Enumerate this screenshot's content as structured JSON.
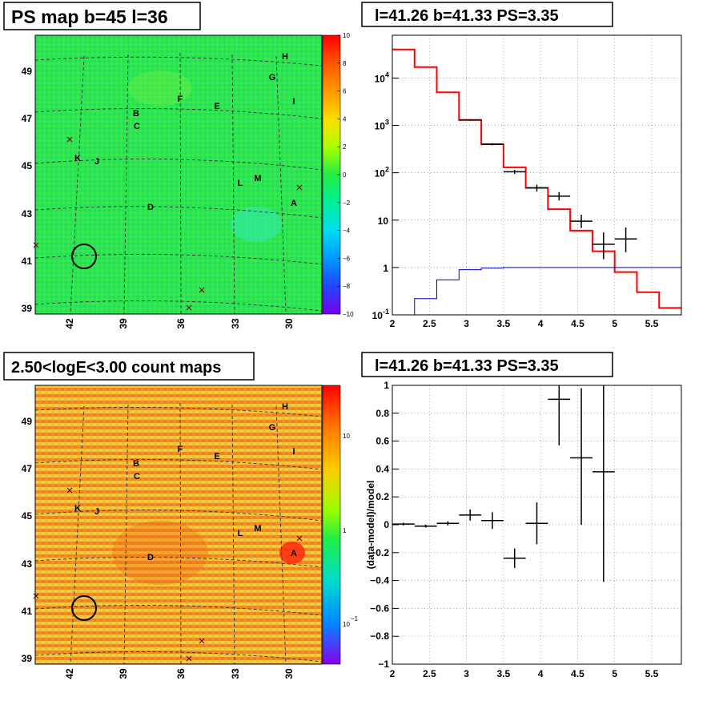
{
  "panels": {
    "ps_map_title": "PS map b=45 l=36",
    "spectrum_title": "l=41.26 b=41.33 PS=3.35",
    "count_map_title": "2.50<logE<3.00 count maps",
    "residual_title": "l=41.26 b=41.33 PS=3.35"
  },
  "sky_maps": {
    "lon_ticks": [
      "42",
      "39",
      "36",
      "33",
      "30"
    ],
    "lat_ticks": [
      "49",
      "47",
      "45",
      "43",
      "41",
      "39"
    ],
    "source_labels": [
      "H",
      "G",
      "I",
      "F",
      "E",
      "B",
      "C",
      "K",
      "J",
      "L",
      "M",
      "A",
      "D"
    ],
    "ps_colorbar_ticks": [
      "10",
      "8",
      "6",
      "4",
      "2",
      "0",
      "−2",
      "−4",
      "−6",
      "−8",
      "−10"
    ],
    "count_colorbar_ticks": [
      "10",
      "1",
      "10",
      "−1"
    ],
    "colors": {
      "ps_background": "#22ee55",
      "count_background": "#f0a020",
      "circle": "#000000"
    }
  },
  "chart_data": [
    {
      "type": "step",
      "title": "l=41.26 b=41.33 PS=3.35",
      "xlabel": "",
      "ylabel": "",
      "xlim": [
        2,
        5.9
      ],
      "ylim": [
        0.1,
        80000
      ],
      "yscale": "log",
      "grid": true,
      "x_ticks": [
        "2",
        "2.5",
        "3",
        "3.5",
        "4",
        "4.5",
        "5",
        "5.5"
      ],
      "y_ticks": [
        "10^-1",
        "1",
        "10",
        "10^2",
        "10^3",
        "10^4"
      ],
      "series": [
        {
          "color": "#ff0000",
          "style": "step",
          "edges": [
            2.0,
            2.3,
            2.6,
            2.9,
            3.2,
            3.5,
            3.8,
            4.1,
            4.4,
            4.7,
            5.0,
            5.3,
            5.6,
            5.9
          ],
          "values": [
            40000,
            17000,
            5000,
            1300,
            400,
            130,
            48,
            17,
            6,
            2.2,
            0.8,
            0.3,
            0.14
          ]
        },
        {
          "color": "#0000cc",
          "style": "step",
          "edges": [
            2.0,
            2.3,
            2.6,
            2.9,
            3.2,
            3.5,
            3.8,
            4.1,
            4.4,
            4.7,
            5.0,
            5.3,
            5.6,
            5.9
          ],
          "values": [
            0.1,
            0.22,
            0.55,
            0.9,
            0.97,
            1.0,
            1.0,
            1.0,
            1.0,
            1.0,
            1.0,
            1.0,
            1.0
          ]
        },
        {
          "color": "#000000",
          "style": "errorbar",
          "points": [
            {
              "x": 3.05,
              "y": 1300,
              "xerr": 0.15,
              "ylo": 1250,
              "yhi": 1350
            },
            {
              "x": 3.35,
              "y": 400,
              "xerr": 0.15,
              "ylo": 380,
              "yhi": 420
            },
            {
              "x": 3.65,
              "y": 105,
              "xerr": 0.15,
              "ylo": 95,
              "yhi": 115
            },
            {
              "x": 3.95,
              "y": 48,
              "xerr": 0.15,
              "ylo": 40,
              "yhi": 56
            },
            {
              "x": 4.25,
              "y": 32,
              "xerr": 0.15,
              "ylo": 26,
              "yhi": 39
            },
            {
              "x": 4.55,
              "y": 9.5,
              "xerr": 0.15,
              "ylo": 6.8,
              "yhi": 13
            },
            {
              "x": 4.85,
              "y": 3.1,
              "xerr": 0.15,
              "ylo": 1.5,
              "yhi": 5.5
            },
            {
              "x": 5.15,
              "y": 4,
              "xerr": 0.15,
              "ylo": 2.1,
              "yhi": 7
            }
          ]
        }
      ]
    },
    {
      "type": "scatter",
      "title": "l=41.26 b=41.33 PS=3.35",
      "xlabel": "",
      "ylabel": "(data-model)/model",
      "xlim": [
        2,
        5.9
      ],
      "ylim": [
        -1,
        1
      ],
      "grid": true,
      "x_ticks": [
        "2",
        "2.5",
        "3",
        "3.5",
        "4",
        "4.5",
        "5",
        "5.5"
      ],
      "y_ticks": [
        "−1",
        "−0.8",
        "−0.6",
        "−0.4",
        "−0.2",
        "0",
        "0.2",
        "0.4",
        "0.6",
        "0.8",
        "1"
      ],
      "series": [
        {
          "color": "#000000",
          "style": "errorbar",
          "points": [
            {
              "x": 2.15,
              "y": 0.005,
              "xerr": 0.15,
              "ylo": -0.005,
              "yhi": 0.015
            },
            {
              "x": 2.45,
              "y": -0.01,
              "xerr": 0.15,
              "ylo": -0.02,
              "yhi": 0.0
            },
            {
              "x": 2.75,
              "y": 0.01,
              "xerr": 0.15,
              "ylo": -0.005,
              "yhi": 0.025
            },
            {
              "x": 3.05,
              "y": 0.07,
              "xerr": 0.15,
              "ylo": 0.03,
              "yhi": 0.11
            },
            {
              "x": 3.35,
              "y": 0.03,
              "xerr": 0.15,
              "ylo": -0.03,
              "yhi": 0.09
            },
            {
              "x": 3.65,
              "y": -0.24,
              "xerr": 0.15,
              "ylo": -0.31,
              "yhi": -0.17
            },
            {
              "x": 3.95,
              "y": 0.01,
              "xerr": 0.15,
              "ylo": -0.14,
              "yhi": 0.16
            },
            {
              "x": 4.25,
              "y": 0.9,
              "xerr": 0.15,
              "ylo": 0.57,
              "yhi": 1.0
            },
            {
              "x": 4.55,
              "y": 0.48,
              "xerr": 0.15,
              "ylo": 0.0,
              "yhi": 0.98
            },
            {
              "x": 4.85,
              "y": 0.38,
              "xerr": 0.15,
              "ylo": -0.41,
              "yhi": 1.0
            }
          ]
        }
      ]
    }
  ]
}
